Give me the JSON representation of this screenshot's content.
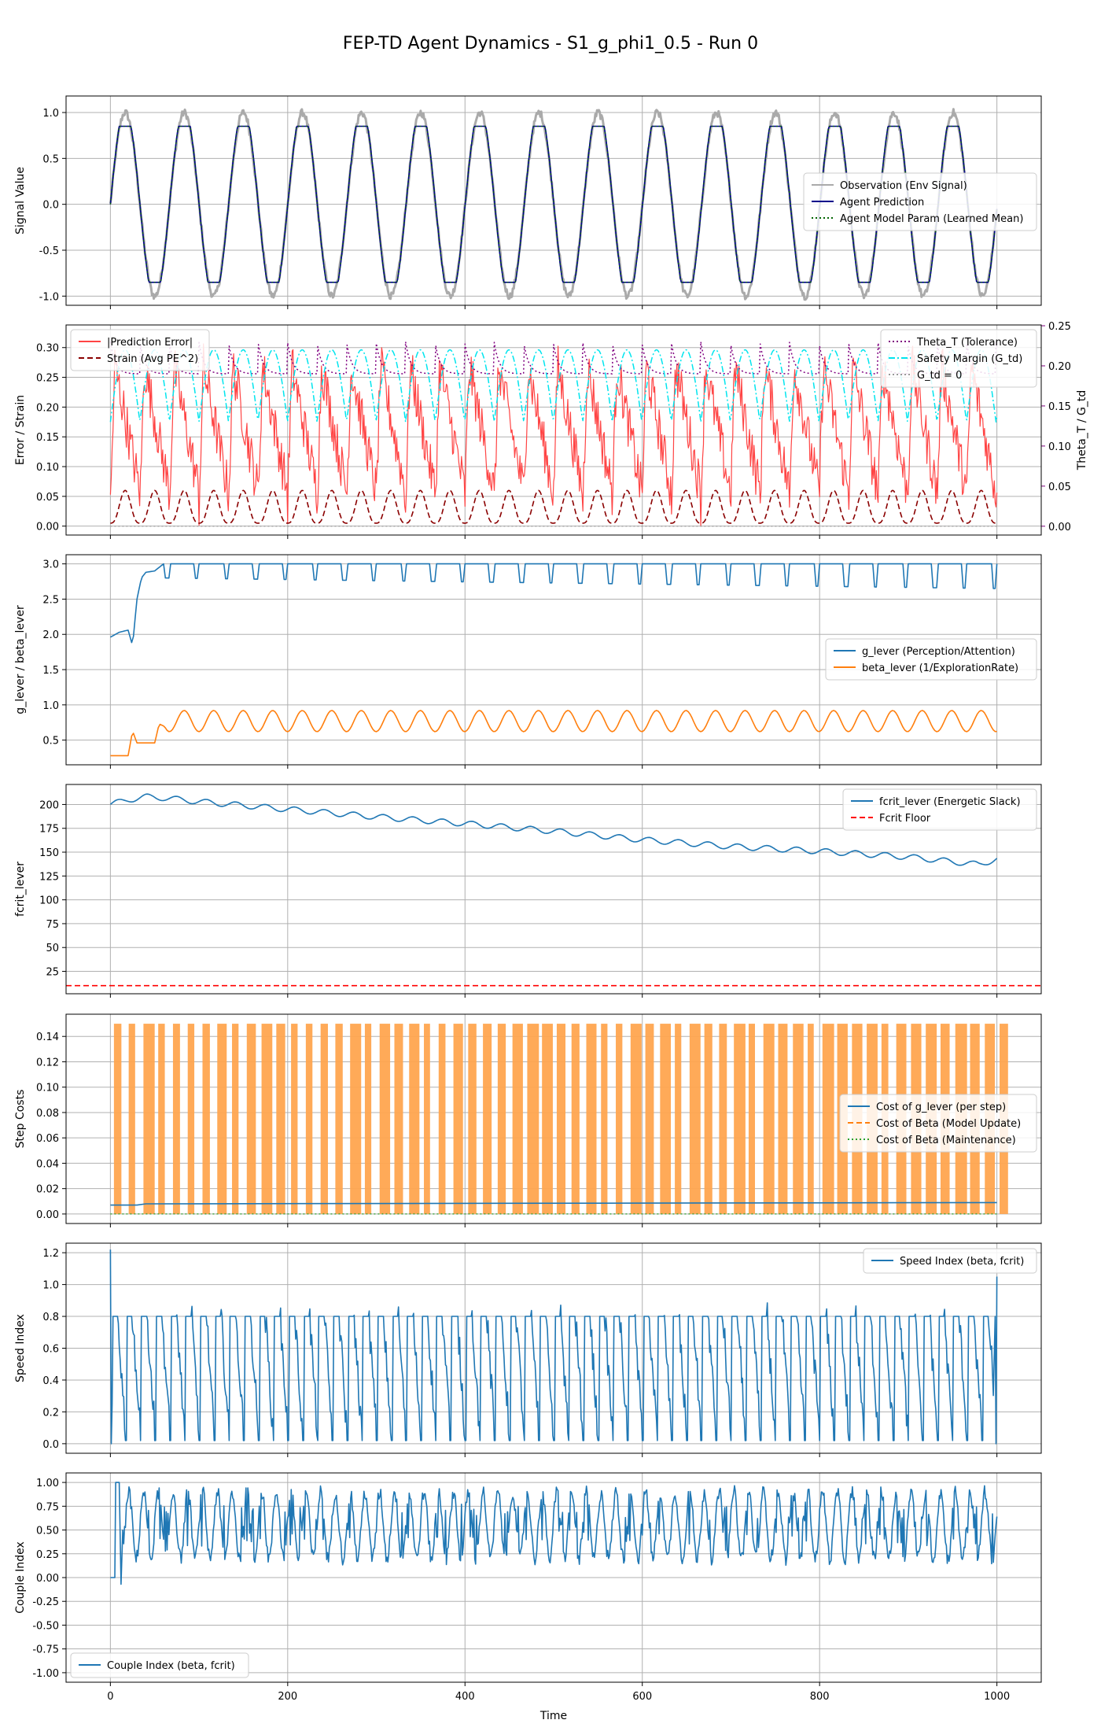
{
  "figure": {
    "title": "FEP-TD Agent Dynamics - S1_g_phi1_0.5 - Run 0",
    "xlabel": "Time",
    "xlim": [
      -50,
      1050
    ],
    "xticks": [
      0,
      200,
      400,
      600,
      800,
      1000
    ]
  },
  "chart_data": [
    {
      "type": "line",
      "ylabel": "Signal Value",
      "ylim": [
        -1.1,
        1.18
      ],
      "yticks": [
        -1.0,
        -0.5,
        0.0,
        0.5,
        1.0
      ],
      "grid": true,
      "legend_position": "center-right",
      "series": [
        {
          "name": "Observation (Env Signal)",
          "color": "#aaaaaa",
          "style": "solid",
          "values_desc": "sinusoid, amplitude ~1.0, period ~66.7, with small noise",
          "amplitude": 1.0,
          "period": 66.7
        },
        {
          "name": "Agent Prediction",
          "color": "#00008b",
          "style": "solid",
          "values_desc": "clipped sinusoid tracking observation",
          "amplitude": 0.85,
          "period": 66.7
        },
        {
          "name": "Agent Model Param (Learned Mean)",
          "color": "#006400",
          "style": "dotted",
          "amplitude": 0.85,
          "period": 66.7
        }
      ]
    },
    {
      "type": "line",
      "ylabel": "Error / Strain",
      "y2label": "Theta_T / G_td",
      "ylim": [
        -0.015,
        0.338
      ],
      "yticks": [
        0.0,
        0.05,
        0.1,
        0.15,
        0.2,
        0.25,
        0.3
      ],
      "y2lim": [
        -0.011,
        0.251
      ],
      "y2ticks": [
        0.0,
        0.05,
        0.1,
        0.15,
        0.2,
        0.25
      ],
      "grid": true,
      "legend_position": "top-left",
      "legend2_position": "top-right",
      "series": [
        {
          "name": "|Prediction Error|",
          "color": "#ff4444",
          "style": "solid",
          "range": [
            0.0,
            0.33
          ]
        },
        {
          "name": "Strain (Avg PE^2)",
          "color": "#8b0000",
          "style": "dashed",
          "range": [
            0.0,
            0.065
          ]
        }
      ],
      "series2": [
        {
          "name": "Theta_T (Tolerance)",
          "color": "#800080",
          "style": "dotted",
          "range": [
            0.18,
            0.24
          ]
        },
        {
          "name": "Safety Margin (G_td)",
          "color": "#00e5ee",
          "style": "dashdot",
          "range": [
            0.12,
            0.23
          ]
        },
        {
          "name": "G_td = 0",
          "color": "#999999",
          "style": "dotted",
          "values": [
            0,
            0
          ]
        }
      ]
    },
    {
      "type": "line",
      "ylabel": "g_lever / beta_lever",
      "ylim": [
        0.15,
        3.13
      ],
      "yticks": [
        0.5,
        1.0,
        1.5,
        2.0,
        2.5,
        3.0
      ],
      "grid": true,
      "legend_position": "center-right",
      "series": [
        {
          "name": "g_lever (Perception/Attention)",
          "color": "#1f77b4",
          "style": "solid",
          "x": [
            0,
            10,
            20,
            25,
            30,
            35,
            40,
            50,
            60,
            1000
          ],
          "values": [
            1.96,
            2.03,
            2.06,
            1.84,
            2.5,
            2.8,
            2.88,
            2.9,
            3.0,
            2.85
          ]
        },
        {
          "name": "beta_lever (1/ExplorationRate)",
          "color": "#ff7f0e",
          "style": "solid",
          "x": [
            0,
            20,
            25,
            30,
            50,
            55,
            60,
            1000
          ],
          "values": [
            0.28,
            0.28,
            0.63,
            0.46,
            0.46,
            0.73,
            0.7,
            0.93
          ]
        }
      ]
    },
    {
      "type": "line",
      "ylabel": "fcrit_lever",
      "ylim": [
        1.5,
        221
      ],
      "yticks": [
        25,
        50,
        75,
        100,
        125,
        150,
        175,
        200
      ],
      "grid": true,
      "legend_position": "top-right",
      "series": [
        {
          "name": "fcrit_lever (Energetic Slack)",
          "color": "#1f77b4",
          "style": "solid",
          "x": [
            0,
            20,
            40,
            60,
            100,
            200,
            300,
            400,
            500,
            600,
            700,
            800,
            900,
            980,
            1000
          ],
          "values": [
            200,
            205,
            208,
            207,
            203,
            195,
            187,
            180,
            172,
            163,
            156,
            151,
            145,
            137,
            143
          ]
        },
        {
          "name": "Fcrit Floor",
          "color": "#ff0000",
          "style": "dashed",
          "values": [
            10,
            10
          ]
        }
      ]
    },
    {
      "type": "line",
      "ylabel": "Step Costs",
      "ylim": [
        -0.0075,
        0.1575
      ],
      "yticks": [
        0.0,
        0.02,
        0.04,
        0.06,
        0.08,
        0.1,
        0.12,
        0.14
      ],
      "grid": true,
      "legend_position": "center-right",
      "series": [
        {
          "name": "Cost of g_lever (per step)",
          "color": "#1f77b4",
          "style": "solid",
          "values": [
            0.007,
            0.009
          ]
        },
        {
          "name": "Cost of Beta (Model Update)",
          "color": "#ff7f0e",
          "style": "dashed",
          "range": [
            0.0,
            0.15
          ]
        },
        {
          "name": "Cost of Beta (Maintenance)",
          "color": "#2ca02c",
          "style": "dotted",
          "values": [
            0.0,
            0.0
          ]
        }
      ]
    },
    {
      "type": "line",
      "ylabel": "Speed Index",
      "ylim": [
        -0.06,
        1.26
      ],
      "yticks": [
        0.0,
        0.2,
        0.4,
        0.6,
        0.8,
        1.0,
        1.2
      ],
      "grid": true,
      "legend_position": "top-right",
      "series": [
        {
          "name": "Speed Index (beta, fcrit)",
          "color": "#1f77b4",
          "style": "solid",
          "range": [
            0.0,
            1.22
          ]
        }
      ]
    },
    {
      "type": "line",
      "ylabel": "Couple Index",
      "ylim": [
        -1.1,
        1.1
      ],
      "yticks": [
        -1.0,
        -0.75,
        -0.5,
        -0.25,
        0.0,
        0.25,
        0.5,
        0.75,
        1.0
      ],
      "grid": true,
      "legend_position": "bottom-left",
      "series": [
        {
          "name": "Couple Index (beta, fcrit)",
          "color": "#1f77b4",
          "style": "solid",
          "range": [
            -0.07,
            1.0
          ]
        }
      ]
    }
  ]
}
